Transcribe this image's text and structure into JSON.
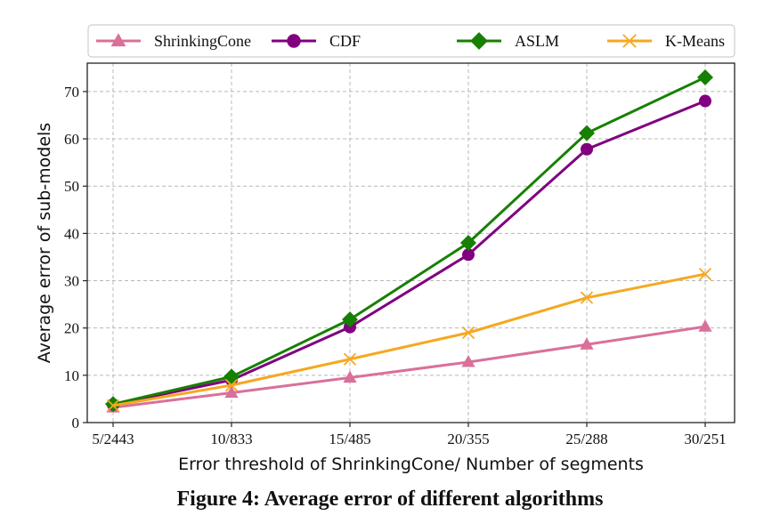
{
  "caption": "Figure 4: Average error of different algorithms",
  "chart_data": {
    "type": "line",
    "title": "",
    "xlabel": "Error threshold of ShrinkingCone/ Number of segments",
    "ylabel": "Average error of sub-models",
    "categories": [
      "5/2443",
      "10/833",
      "15/485",
      "20/355",
      "25/288",
      "30/251"
    ],
    "ylim": [
      0,
      76
    ],
    "yticks": [
      0,
      10,
      20,
      30,
      40,
      50,
      60,
      70
    ],
    "grid": true,
    "legend_position": "top",
    "series": [
      {
        "name": "ShrinkingCone",
        "color": "#d9709a",
        "marker": "triangle",
        "values": [
          3.2,
          6.3,
          9.5,
          12.8,
          16.5,
          20.3
        ]
      },
      {
        "name": "CDF",
        "color": "#800080",
        "marker": "circle",
        "values": [
          3.8,
          9.0,
          20.2,
          35.5,
          57.8,
          68.0
        ]
      },
      {
        "name": "ASLM",
        "color": "#168000",
        "marker": "diamond",
        "values": [
          3.9,
          9.7,
          21.8,
          38.0,
          61.2,
          73.0
        ]
      },
      {
        "name": "K-Means",
        "color": "#f5a820",
        "marker": "x",
        "values": [
          3.6,
          7.9,
          13.4,
          19.0,
          26.4,
          31.4
        ]
      }
    ]
  }
}
